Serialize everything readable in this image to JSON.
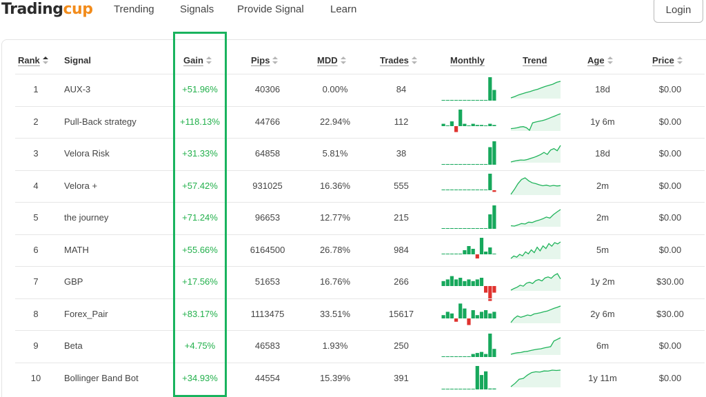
{
  "brand": {
    "part1": "Trading",
    "part2": "cup"
  },
  "nav": [
    "Trending",
    "Signals",
    "Provide Signal",
    "Learn"
  ],
  "login_label": "Login",
  "columns": {
    "rank": "Rank",
    "signal": "Signal",
    "gain": "Gain",
    "pips": "Pips",
    "mdd": "MDD",
    "trades": "Trades",
    "monthly": "Monthly",
    "trend": "Trend",
    "age": "Age",
    "price": "Price"
  },
  "colors": {
    "gain": "#22b04b",
    "positive_bar": "#17a85c",
    "negative_bar": "#e0332f",
    "trend_line": "#1fb35a",
    "highlight": "#19b35e",
    "brand_orange": "#f28c1c"
  },
  "rows": [
    {
      "rank": "1",
      "signal": "AUX-3",
      "gain": "+51.96%",
      "pips": "40306",
      "mdd": "0.00%",
      "trades": "84",
      "age": "18d",
      "price": "$0.00",
      "monthly": [
        0,
        0,
        0,
        0,
        0,
        0,
        0,
        0,
        0,
        0,
        0,
        2.2,
        1.0
      ],
      "trend": [
        0,
        0.8,
        1.8,
        2.5,
        3.2,
        3.8,
        4.6,
        5.2,
        6.1,
        6.9,
        7.6,
        8.3,
        9.4,
        10
      ]
    },
    {
      "rank": "2",
      "signal": "Pull-Back strategy",
      "gain": "+118.13%",
      "pips": "44766",
      "mdd": "22.94%",
      "trades": "112",
      "age": "1y 6m",
      "price": "$0.00",
      "monthly": [
        0.2,
        0,
        0.4,
        -0.5,
        1.4,
        0.2,
        0,
        0.2,
        0.1,
        0.1,
        0,
        0.2,
        0.1
      ],
      "trend": [
        1,
        1.2,
        1.5,
        2,
        2.2,
        1.6,
        0,
        4.5,
        5,
        5.4,
        5.8,
        6.3,
        7,
        7.8,
        8.5,
        9.3,
        10
      ]
    },
    {
      "rank": "3",
      "signal": "Velora Risk",
      "gain": "+31.33%",
      "pips": "64858",
      "mdd": "5.81%",
      "trades": "38",
      "age": "18d",
      "price": "$0.00",
      "monthly": [
        0,
        0,
        0,
        0,
        0,
        0,
        0,
        0,
        0,
        0,
        0,
        1.5,
        2.0
      ],
      "trend": [
        0,
        0.5,
        0.9,
        1.2,
        1.1,
        1.5,
        2.2,
        2.8,
        3.6,
        4.5,
        5.8,
        4.6,
        7.2,
        8.1,
        6.8,
        10
      ]
    },
    {
      "rank": "4",
      "signal": "Velora +",
      "gain": "+57.42%",
      "pips": "931025",
      "mdd": "16.36%",
      "trades": "555",
      "age": "2m",
      "price": "$0.00",
      "monthly": [
        0,
        0,
        0,
        0,
        0,
        0,
        0,
        0,
        0,
        0,
        0,
        2.0,
        -0.2
      ],
      "trend": [
        0,
        3,
        6.5,
        9,
        10,
        8.2,
        7,
        6.5,
        5.8,
        5.2,
        5.6,
        5,
        5.4,
        5.1,
        5.3
      ]
    },
    {
      "rank": "5",
      "signal": "the journey",
      "gain": "+71.24%",
      "pips": "96653",
      "mdd": "12.77%",
      "trades": "215",
      "age": "2m",
      "price": "$0.00",
      "monthly": [
        0,
        0,
        0,
        0,
        0,
        0,
        0,
        0,
        0,
        0,
        0,
        1.3,
        2.1
      ],
      "trend": [
        0.5,
        0.3,
        1,
        1.8,
        1.5,
        2.6,
        2.4,
        3.2,
        3.8,
        4.6,
        5.6,
        5,
        7,
        8.6,
        10
      ]
    },
    {
      "rank": "6",
      "signal": "MATH",
      "gain": "+55.66%",
      "pips": "6164500",
      "mdd": "26.78%",
      "trades": "984",
      "age": "5m",
      "price": "$0.00",
      "monthly": [
        0,
        0,
        0,
        0,
        0,
        0.3,
        0.6,
        0.4,
        -0.3,
        1.2,
        0.2,
        0.5,
        0
      ],
      "trend": [
        0,
        1.5,
        0.8,
        2.5,
        1.6,
        4,
        2.8,
        5.2,
        3.5,
        6.8,
        4.6,
        7.6,
        6,
        9,
        7.4,
        9.6,
        8.8,
        10
      ]
    },
    {
      "rank": "7",
      "signal": "GBP",
      "gain": "+17.56%",
      "pips": "51653",
      "mdd": "16.76%",
      "trades": "266",
      "age": "1y 2m",
      "price": "$30.00",
      "monthly": [
        0.3,
        0.4,
        0.6,
        0.4,
        0.5,
        0.3,
        0.4,
        0.3,
        0.4,
        0.5,
        -0.4,
        -0.9,
        -0.4
      ],
      "trend": [
        0,
        1,
        1.8,
        3,
        2.4,
        4.2,
        4.8,
        4,
        5.8,
        6.4,
        5.6,
        7.4,
        8,
        7.2,
        9,
        10,
        6.8
      ]
    },
    {
      "rank": "8",
      "signal": "Forex_Pair",
      "gain": "+83.17%",
      "pips": "1113475",
      "mdd": "33.51%",
      "trades": "15617",
      "age": "2y 6m",
      "price": "$30.00",
      "monthly": [
        0.2,
        0.4,
        0.3,
        -0.2,
        0.9,
        0.6,
        -0.4,
        0.5,
        0.2,
        0.4,
        0.5,
        0.3,
        0.4
      ],
      "trend": [
        0,
        2.5,
        4,
        3.2,
        3.8,
        4.6,
        4.2,
        5.2,
        5.6,
        6,
        6.6,
        7,
        7.8,
        8.6,
        9.2,
        10
      ]
    },
    {
      "rank": "9",
      "signal": "Beta",
      "gain": "+4.75%",
      "pips": "46583",
      "mdd": "1.93%",
      "trades": "250",
      "age": "6m",
      "price": "$0.00",
      "monthly": [
        0,
        0,
        0,
        0,
        0,
        0,
        0,
        0.3,
        0.4,
        0.5,
        0.3,
        2.3,
        0.8
      ],
      "trend": [
        0,
        0.6,
        0.9,
        1.1,
        1.6,
        1.8,
        2.3,
        2.7,
        3.1,
        3.3,
        3.8,
        4.2,
        4.6,
        8,
        9,
        10
      ]
    },
    {
      "rank": "10",
      "signal": "Bollinger Band Bot",
      "gain": "+34.93%",
      "pips": "44554",
      "mdd": "15.39%",
      "trades": "391",
      "age": "1y 11m",
      "price": "$0.00",
      "monthly": [
        0,
        0,
        0,
        0,
        0,
        0,
        0,
        0,
        2.6,
        1.6,
        2.0,
        0.1,
        0.1
      ],
      "trend": [
        0,
        2,
        4.5,
        5,
        7,
        8.5,
        9,
        8.8,
        9.5,
        9.4,
        10,
        9.8,
        10
      ]
    }
  ]
}
